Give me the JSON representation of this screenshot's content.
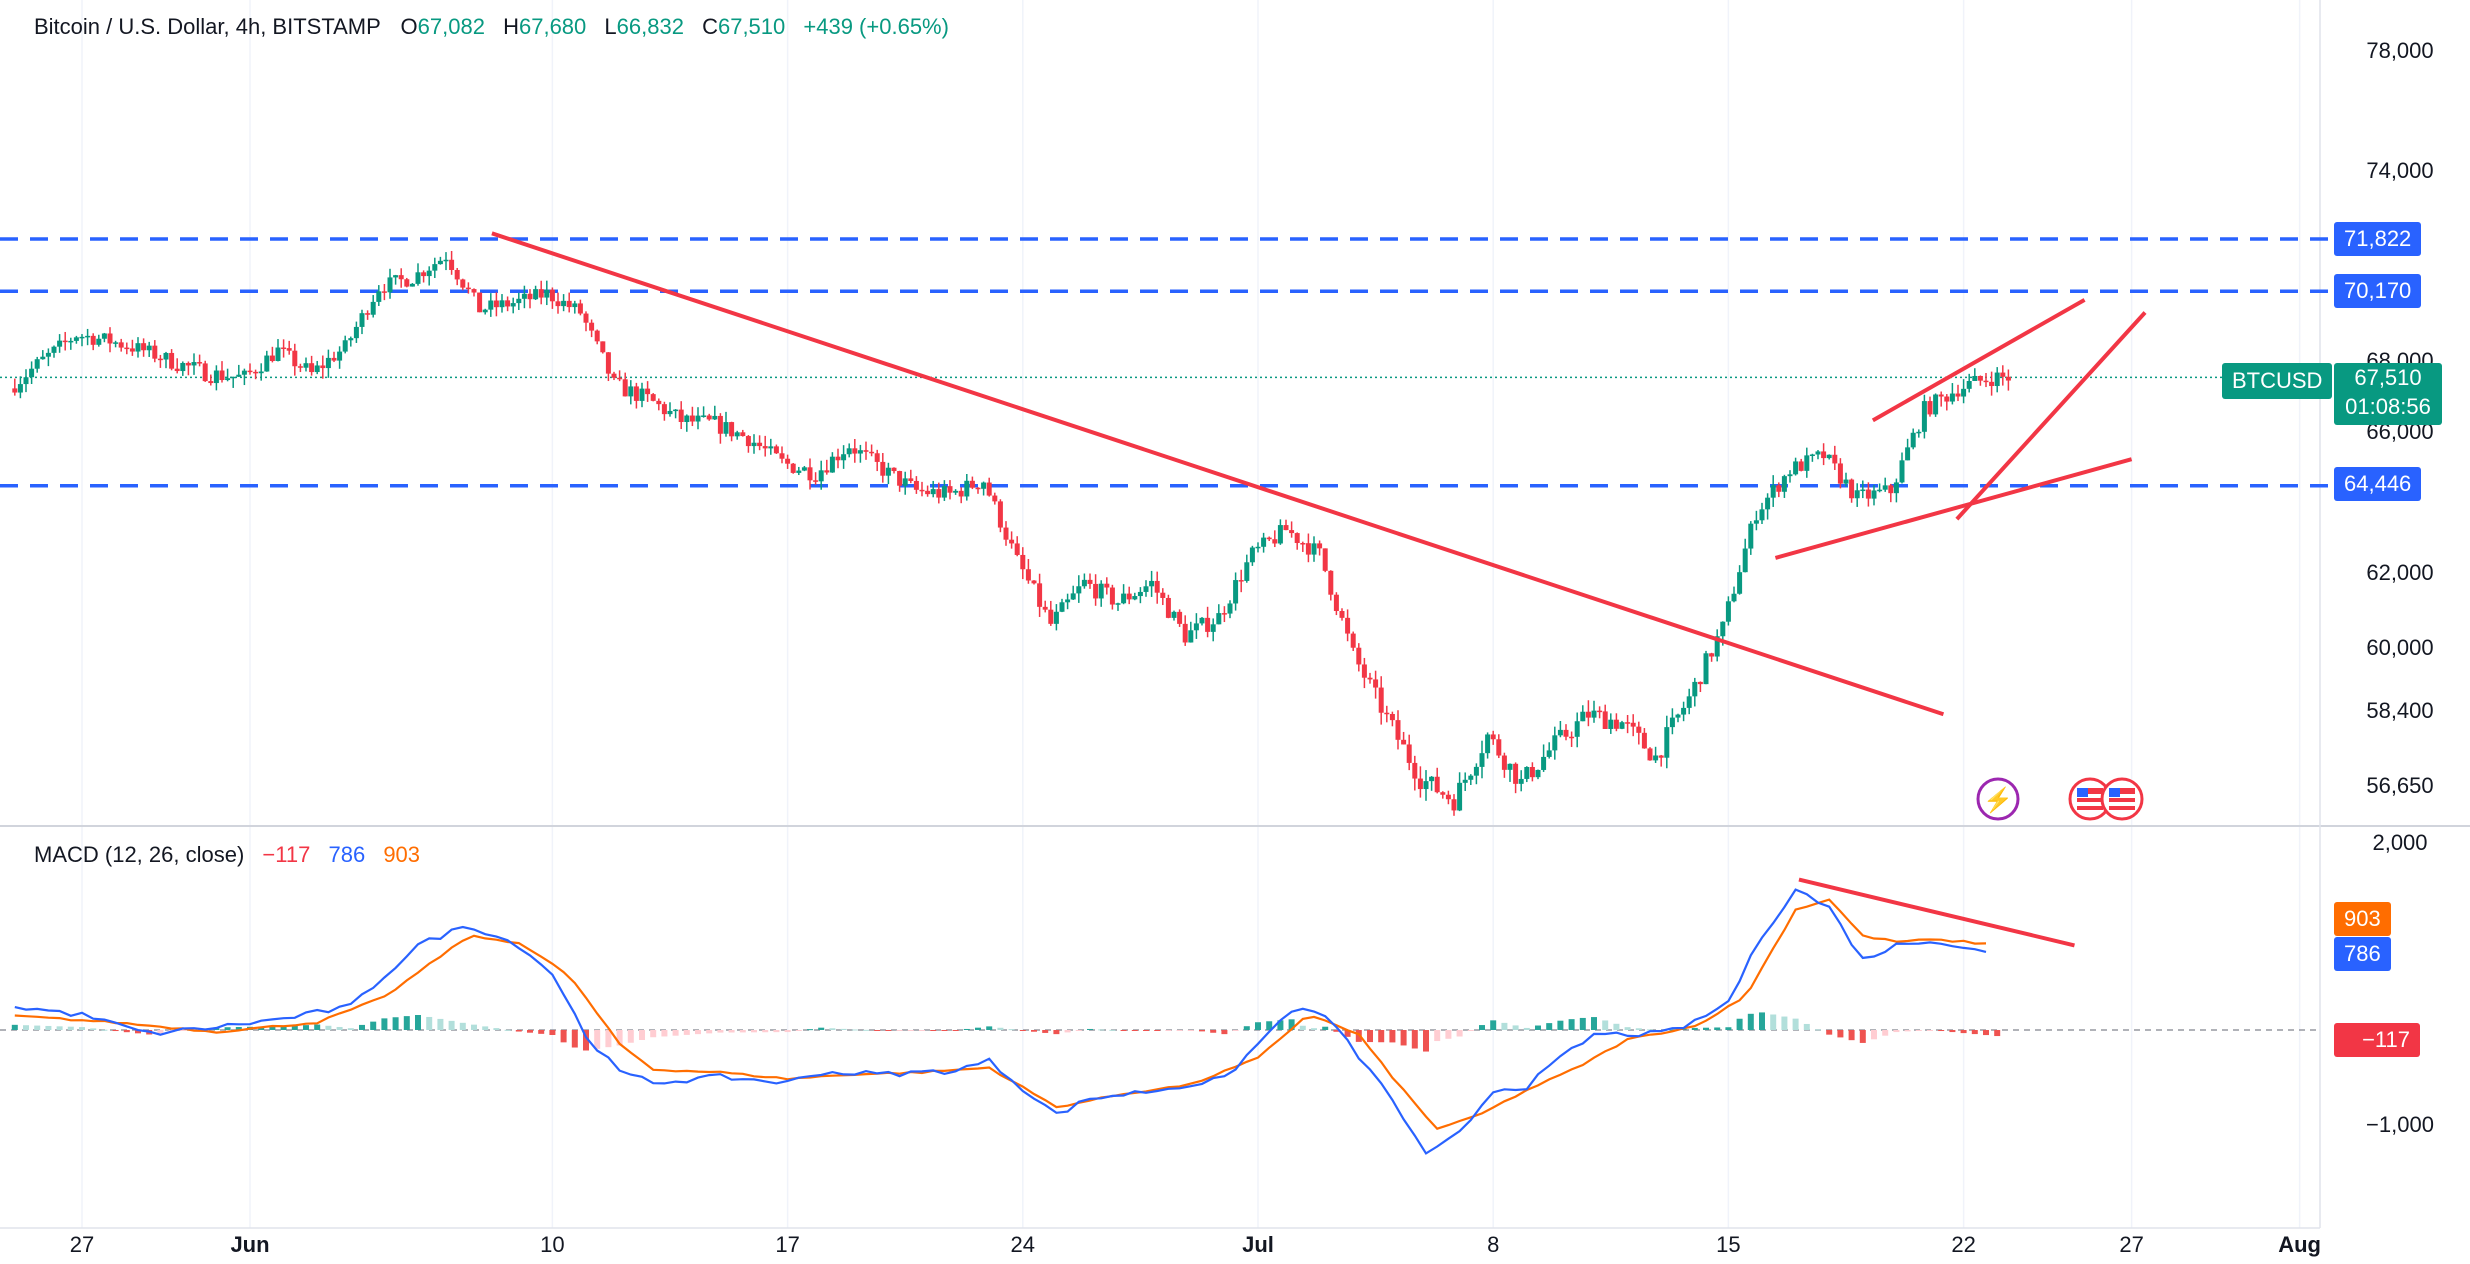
{
  "header": {
    "symbol": "Bitcoin / U.S. Dollar, 4h, BITSTAMP",
    "o_label": "O",
    "o": "67,082",
    "h_label": "H",
    "h": "67,680",
    "l_label": "L",
    "l": "66,832",
    "c_label": "C",
    "c": "67,510",
    "change": "+439 (+0.65%)"
  },
  "macd_header": {
    "label": "MACD (12, 26, close)",
    "hist": "−117",
    "macd": "786",
    "signal": "903"
  },
  "badges": {
    "ticker": "BTCUSD",
    "price": "67,510",
    "countdown": "01:08:56",
    "level_71822": "71,822",
    "level_70170": "70,170",
    "level_64446": "64,446",
    "signal": "903",
    "macd": "786",
    "hist": "−117"
  },
  "colors": {
    "up": "#089981",
    "down": "#f23645",
    "trendline": "#f23645",
    "dashed_levels": "#2962ff",
    "macd_line": "#2962ff",
    "signal_line": "#ff6d00",
    "hist_up": "#26a69a",
    "hist_down": "#ef5350"
  },
  "chart_data": [
    {
      "type": "candlestick",
      "title": "Bitcoin / U.S. Dollar, 4h, BITSTAMP",
      "y_ticks": [
        "78,000",
        "74,000",
        "68,000",
        "66,000",
        "62,000",
        "60,000",
        "58,400",
        "56,650"
      ],
      "y_tick_values": [
        78000,
        74000,
        68000,
        66000,
        62000,
        60000,
        58400,
        56650
      ],
      "x_ticks": [
        "27",
        "Jun",
        "10",
        "17",
        "24",
        "Jul",
        "8",
        "15",
        "22",
        "27",
        "Aug"
      ],
      "x_tick_days": [
        -5,
        0,
        9,
        16,
        23,
        30,
        37,
        44,
        51,
        56,
        61
      ],
      "x_origin_date": "2024-06-01",
      "ylim": [
        55700,
        79000
      ],
      "horizontal_levels": [
        71822,
        70170,
        64446
      ],
      "last_price": 67510,
      "price_anchors": [
        [
          -7,
          67200
        ],
        [
          -6,
          68000
        ],
        [
          -5,
          68800
        ],
        [
          -4,
          68600
        ],
        [
          -3,
          68300
        ],
        [
          -2,
          67900
        ],
        [
          -1,
          67600
        ],
        [
          0,
          67500
        ],
        [
          1,
          68300
        ],
        [
          2,
          67600
        ],
        [
          3,
          68400
        ],
        [
          4,
          70300
        ],
        [
          5,
          70600
        ],
        [
          6,
          71300
        ],
        [
          7,
          69600
        ],
        [
          8,
          69800
        ],
        [
          9,
          70100
        ],
        [
          10,
          69500
        ],
        [
          11,
          67300
        ],
        [
          12,
          66900
        ],
        [
          13,
          66300
        ],
        [
          14,
          66200
        ],
        [
          15,
          65800
        ],
        [
          16,
          65100
        ],
        [
          17,
          64800
        ],
        [
          18,
          65600
        ],
        [
          19,
          64900
        ],
        [
          20,
          64300
        ],
        [
          21,
          64200
        ],
        [
          22,
          64600
        ],
        [
          23,
          62300
        ],
        [
          24,
          60600
        ],
        [
          25,
          61700
        ],
        [
          26,
          61200
        ],
        [
          27,
          61700
        ],
        [
          28,
          60300
        ],
        [
          29,
          60800
        ],
        [
          30,
          62500
        ],
        [
          31,
          63200
        ],
        [
          32,
          62500
        ],
        [
          33,
          59800
        ],
        [
          34,
          58200
        ],
        [
          35,
          56800
        ],
        [
          36,
          56300
        ],
        [
          37,
          57800
        ],
        [
          38,
          56700
        ],
        [
          39,
          57600
        ],
        [
          40,
          58300
        ],
        [
          41,
          58100
        ],
        [
          42,
          57300
        ],
        [
          43,
          58700
        ],
        [
          44,
          60500
        ],
        [
          45,
          63700
        ],
        [
          46,
          64900
        ],
        [
          47,
          65300
        ],
        [
          48,
          64100
        ],
        [
          49,
          64300
        ],
        [
          50,
          66600
        ],
        [
          51,
          67200
        ],
        [
          52,
          67510
        ]
      ],
      "trendlines": [
        {
          "name": "downtrend",
          "from": [
            7.2,
            72000
          ],
          "to": [
            50.4,
            58300
          ]
        },
        {
          "name": "wedge_upper",
          "from": [
            48.3,
            66300
          ],
          "to": [
            54.6,
            69900
          ]
        },
        {
          "name": "wedge_lower",
          "from": [
            45.4,
            62400
          ],
          "to": [
            56.0,
            65200
          ]
        },
        {
          "name": "wedge_inner",
          "from": [
            50.8,
            63500
          ],
          "to": [
            56.4,
            69500
          ]
        }
      ]
    },
    {
      "type": "macd",
      "title": "MACD (12, 26, close)",
      "y_ticks": [
        "2,000",
        "−1,000"
      ],
      "y_tick_values": [
        2000,
        -1000
      ],
      "ylim": [
        -1450,
        2100
      ],
      "macd_anchors": [
        [
          -7,
          250
        ],
        [
          -5,
          160
        ],
        [
          -3,
          -40
        ],
        [
          -1,
          30
        ],
        [
          1,
          120
        ],
        [
          3,
          250
        ],
        [
          5,
          900
        ],
        [
          6.5,
          1120
        ],
        [
          8,
          900
        ],
        [
          9,
          600
        ],
        [
          10,
          -60
        ],
        [
          11,
          -450
        ],
        [
          12,
          -560
        ],
        [
          14,
          -500
        ],
        [
          16,
          -560
        ],
        [
          17,
          -450
        ],
        [
          19,
          -470
        ],
        [
          21,
          -430
        ],
        [
          22,
          -330
        ],
        [
          23,
          -620
        ],
        [
          24,
          -900
        ],
        [
          25,
          -730
        ],
        [
          27,
          -640
        ],
        [
          29,
          -520
        ],
        [
          30,
          -150
        ],
        [
          31,
          220
        ],
        [
          32,
          160
        ],
        [
          33,
          -280
        ],
        [
          34,
          -740
        ],
        [
          35,
          -1340
        ],
        [
          36,
          -1100
        ],
        [
          37,
          -640
        ],
        [
          38,
          -600
        ],
        [
          39,
          -300
        ],
        [
          40,
          -50
        ],
        [
          42,
          -40
        ],
        [
          43,
          80
        ],
        [
          44,
          300
        ],
        [
          45,
          1000
        ],
        [
          46,
          1500
        ],
        [
          47,
          1300
        ],
        [
          48,
          750
        ],
        [
          49,
          900
        ],
        [
          50,
          960
        ],
        [
          51,
          880
        ],
        [
          52,
          786
        ]
      ],
      "signal_anchors": [
        [
          -7,
          150
        ],
        [
          -4,
          80
        ],
        [
          -1,
          -20
        ],
        [
          2,
          80
        ],
        [
          4,
          350
        ],
        [
          6.5,
          1000
        ],
        [
          8,
          930
        ],
        [
          9.5,
          580
        ],
        [
          11,
          -150
        ],
        [
          12,
          -420
        ],
        [
          14,
          -450
        ],
        [
          16,
          -520
        ],
        [
          18,
          -470
        ],
        [
          20,
          -450
        ],
        [
          22,
          -400
        ],
        [
          24,
          -820
        ],
        [
          26,
          -680
        ],
        [
          28,
          -580
        ],
        [
          30,
          -300
        ],
        [
          31.5,
          170
        ],
        [
          33,
          -50
        ],
        [
          34,
          -500
        ],
        [
          35.3,
          -1050
        ],
        [
          36.5,
          -920
        ],
        [
          38,
          -640
        ],
        [
          39.5,
          -400
        ],
        [
          41,
          -100
        ],
        [
          43,
          40
        ],
        [
          44.5,
          350
        ],
        [
          46,
          1280
        ],
        [
          47,
          1390
        ],
        [
          48,
          1000
        ],
        [
          49,
          940
        ],
        [
          50,
          960
        ],
        [
          51,
          940
        ],
        [
          52,
          903
        ]
      ],
      "histogram_last": -117,
      "trendline": {
        "from": [
          46.1,
          1600
        ],
        "to": [
          54.3,
          900
        ]
      }
    }
  ]
}
